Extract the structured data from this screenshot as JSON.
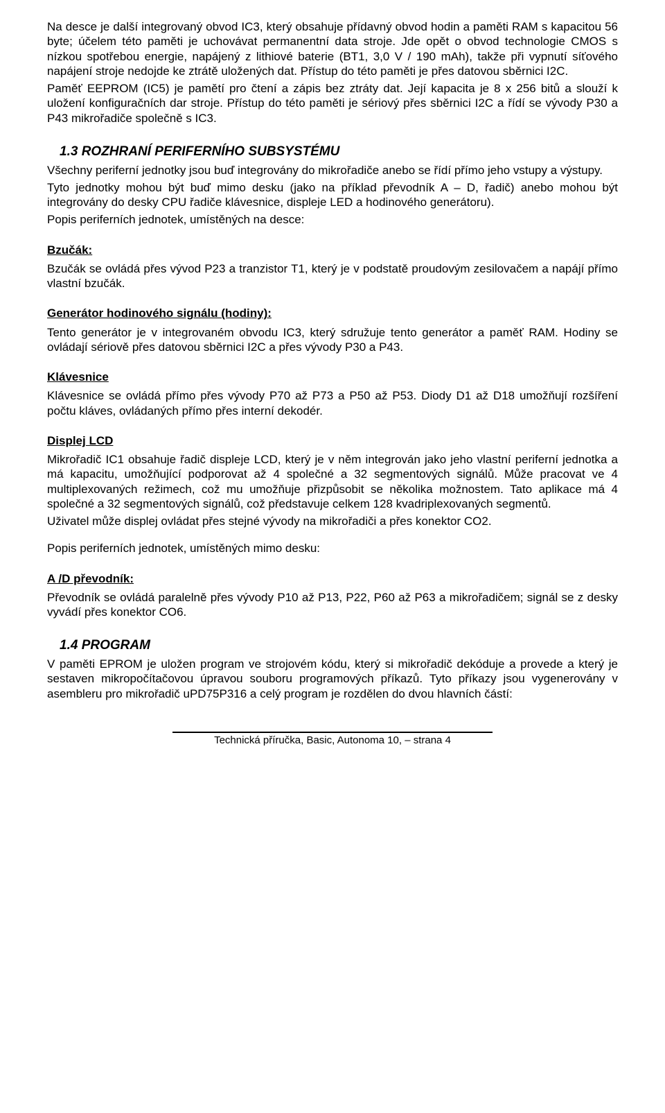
{
  "intro": {
    "p1": "Na desce je další integrovaný obvod IC3, který obsahuje přídavný obvod hodin a paměti RAM s kapacitou 56 byte; účelem této paměti je uchovávat permanentní data stroje. Jde opět o obvod technologie CMOS s nízkou spotřebou energie, napájený z lithiové baterie (BT1, 3,0 V / 190 mAh), takže při vypnutí síťového napájení stroje nedojde ke ztrátě uložených dat. Přístup do této paměti je přes datovou sběrnici I2C.",
    "p2": "Paměť EEPROM (IC5) je pamětí pro čtení a zápis bez ztráty dat. Její kapacita je 8 x 256 bitů a slouží k uložení konfiguračních dar stroje. Přístup do této paměti je sériový přes sběrnici I2C a řídí se vývody P30 a P43 mikrořadiče společně s IC3."
  },
  "sec13": {
    "heading": "1.3 ROZHRANÍ PERIFERNÍHO SUBSYSTÉMU",
    "p1": "Všechny periferní jednotky jsou buď integrovány do mikrořadiče anebo se řídí přímo jeho vstupy a výstupy.",
    "p2": "Tyto jednotky mohou být buď mimo desku (jako na příklad převodník A – D, řadič) anebo mohou být integrovány do desky CPU řadiče klávesnice, displeje LED a hodinového generátoru).",
    "p3": "Popis periferních jednotek, umístěných na desce:"
  },
  "buzzer": {
    "title": "Bzučák:",
    "p1": "Bzučák se ovládá přes vývod P23 a tranzistor T1, který je v podstatě proudovým zesilovačem a napájí přímo vlastní bzučák."
  },
  "clockgen": {
    "title": "Generátor hodinového signálu (hodiny):",
    "p1": "Tento generátor je v integrovaném obvodu IC3, který sdružuje tento generátor a paměť RAM. Hodiny se ovládají sériově přes datovou sběrnici I2C a přes vývody P30 a P43."
  },
  "keyboard": {
    "title": "Klávesnice",
    "p1": "Klávesnice se ovládá přímo přes vývody P70 až P73 a P50 až P53. Diody D1 až D18 umožňují rozšíření počtu kláves, ovládaných přímo přes interní dekodér."
  },
  "lcd": {
    "title": "Displej LCD",
    "p1": "Mikrořadič IC1 obsahuje řadič displeje LCD, který je v něm integrován jako jeho vlastní periferní jednotka a má kapacitu, umožňující podporovat až 4 společné a 32 segmentových signálů. Může pracovat ve 4 multiplexovaných režimech, což mu umožňuje přizpůsobit se několika možnostem. Tato aplikace má 4 společné a 32 segmentových signálů, což představuje celkem 128 kvadriplexovaných segmentů.",
    "p2": "Uživatel může displej ovládat přes stejné vývody na mikrořadiči a přes konektor CO2."
  },
  "offboard_desc": "Popis periferních jednotek, umístěných mimo desku:",
  "adc": {
    "title": "A /D převodník:",
    "p1": "Převodník se ovládá paralelně přes vývody P10 až P13, P22, P60 až P63 a mikrořadičem; signál se z desky vyvádí přes konektor CO6."
  },
  "sec14": {
    "heading": "1.4 PROGRAM",
    "p1": "V paměti EPROM je uložen program ve strojovém kódu, který si mikrořadič dekóduje a provede a který je sestaven mikropočítačovou úpravou souboru programových příkazů. Tyto příkazy jsou vygenerovány v asembleru pro mikrořadič uPD75P316 a celý program je rozdělen do dvou hlavních částí:"
  },
  "footer": "Technická příručka, Basic, Autonoma 10,  –  strana 4"
}
